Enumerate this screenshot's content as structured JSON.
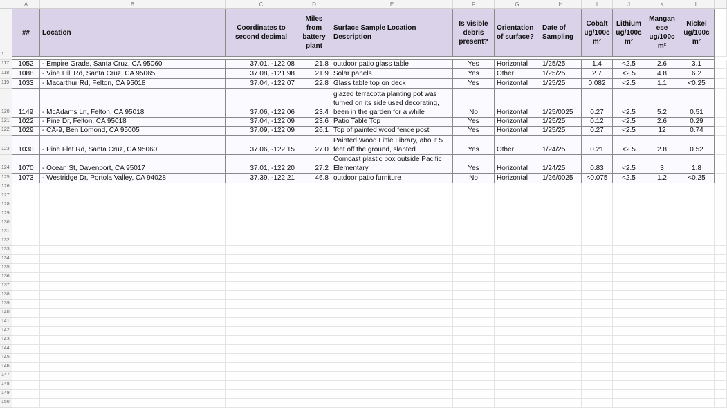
{
  "column_letters": [
    "A",
    "B",
    "C",
    "D",
    "E",
    "F",
    "G",
    "H",
    "I",
    "J",
    "K",
    "L"
  ],
  "header_row_number": "1",
  "header": [
    "##",
    "Location",
    "Coordinates to second decimal",
    "Miles from battery plant",
    "Surface Sample Location Description",
    "Is visible debris present?",
    "Orientation of surface?",
    "Date of Sampling",
    "Cobalt ug/100cm²",
    "Lithium ug/100cm²",
    "Manganese ug/100cm²",
    "Nickel ug/100cm²"
  ],
  "rows": [
    {
      "number": "117",
      "cells": [
        "1052",
        "- Empire Grade, Santa Cruz, CA 95060",
        "37.01, -122.08",
        "21.8",
        "outdoor patio glass table",
        "Yes",
        "Horizontal",
        "1/25/25",
        "1.4",
        "<2.5",
        "2.6",
        "3.1"
      ]
    },
    {
      "number": "118",
      "cells": [
        "1088",
        "- Vine Hill Rd, Santa Cruz, CA 95065",
        "37.08, -121.98",
        "21.9",
        "Solar panels",
        "Yes",
        "Other",
        "1/25/25",
        "2.7",
        "<2.5",
        "4.8",
        "6.2"
      ]
    },
    {
      "number": "119",
      "cells": [
        "1033",
        "- Macarthur Rd, Felton, CA 95018",
        "37.04, -122.07",
        "22.8",
        "Glass table top on deck",
        "Yes",
        "Horizontal",
        "1/25/25",
        "0.082",
        "<2.5",
        "1.1",
        "<0.25"
      ]
    },
    {
      "number": "120",
      "cells": [
        "1149",
        "- McAdams Ln, Felton, CA 95018",
        "37.06, -122.06",
        "23.4",
        "glazed terracotta planting pot was turned on its side used decorating, been in the garden for a while",
        "No",
        "Horizontal",
        "1/25/0025",
        "0.27",
        "<2.5",
        "5.2",
        "0.51"
      ]
    },
    {
      "number": "121",
      "cells": [
        "1022",
        "- Pine Dr, Felton, CA 95018",
        "37.04, -122.09",
        "23.6",
        "Patio Table Top",
        "Yes",
        "Horizontal",
        "1/25/25",
        "0.12",
        "<2.5",
        "2.6",
        "0.29"
      ]
    },
    {
      "number": "122",
      "cells": [
        "1029",
        "- CA-9, Ben Lomond, CA 95005",
        "37.09, -122.09",
        "26.1",
        "Top of painted wood fence post",
        "Yes",
        "Horizontal",
        "1/25/25",
        "0.27",
        "<2.5",
        "12",
        "0.74"
      ]
    },
    {
      "number": "123",
      "cells": [
        "1030",
        "- Pine Flat Rd, Santa Cruz, CA 95060",
        "37.06, -122.15",
        "27.0",
        "Painted Wood Little Library, about 5 feet off the ground, slanted",
        "Yes",
        "Other",
        "1/24/25",
        "0.21",
        "<2.5",
        "2.8",
        "0.52"
      ]
    },
    {
      "number": "124",
      "cells": [
        "1070",
        "- Ocean St, Davenport, CA 95017",
        "37.01, -122.20",
        "27.2",
        "Comcast plastic box outside Pacific Elementary",
        "Yes",
        "Horizontal",
        "1/24/25",
        "0.83",
        "<2.5",
        "3",
        "1.8"
      ]
    },
    {
      "number": "125",
      "cells": [
        "1073",
        "- Westridge Dr, Portola Valley, CA 94028",
        "37.39, -122.21",
        "46.8",
        "outdoor patio furniture",
        "No",
        "Horizontal",
        "1/26/0025",
        "<0.075",
        "<2.5",
        "1.2",
        "<0.25"
      ]
    }
  ],
  "empty_rows": [
    "126",
    "127",
    "128",
    "129",
    "130",
    "131",
    "132",
    "133",
    "134",
    "135",
    "136",
    "137",
    "138",
    "139",
    "140",
    "141",
    "142",
    "143",
    "144",
    "145",
    "146",
    "147",
    "148",
    "149",
    "150"
  ]
}
